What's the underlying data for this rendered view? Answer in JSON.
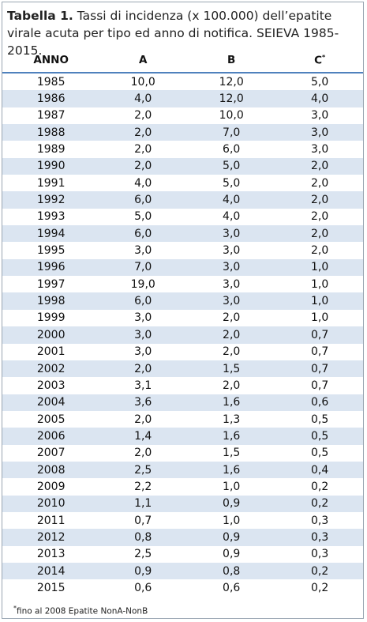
{
  "title": {
    "label": "Tabella 1.",
    "text": "Tassi di incidenza (x 100.000) dell’epatite virale acuta per tipo ed anno di notifica. SEIEVA 1985-2015."
  },
  "table": {
    "header": [
      "ANNO",
      "A",
      "B",
      "C"
    ],
    "header_mark": "*",
    "rows": [
      [
        "1985",
        "10,0",
        "12,0",
        "5,0"
      ],
      [
        "1986",
        "4,0",
        "12,0",
        "4,0"
      ],
      [
        "1987",
        "2,0",
        "10,0",
        "3,0"
      ],
      [
        "1988",
        "2,0",
        "7,0",
        "3,0"
      ],
      [
        "1989",
        "2,0",
        "6,0",
        "3,0"
      ],
      [
        "1990",
        "2,0",
        "5,0",
        "2,0"
      ],
      [
        "1991",
        "4,0",
        "5,0",
        "2,0"
      ],
      [
        "1992",
        "6,0",
        "4,0",
        "2,0"
      ],
      [
        "1993",
        "5,0",
        "4,0",
        "2,0"
      ],
      [
        "1994",
        "6,0",
        "3,0",
        "2,0"
      ],
      [
        "1995",
        "3,0",
        "3,0",
        "2,0"
      ],
      [
        "1996",
        "7,0",
        "3,0",
        "1,0"
      ],
      [
        "1997",
        "19,0",
        "3,0",
        "1,0"
      ],
      [
        "1998",
        "6,0",
        "3,0",
        "1,0"
      ],
      [
        "1999",
        "3,0",
        "2,0",
        "1,0"
      ],
      [
        "2000",
        "3,0",
        "2,0",
        "0,7"
      ],
      [
        "2001",
        "3,0",
        "2,0",
        "0,7"
      ],
      [
        "2002",
        "2,0",
        "1,5",
        "0,7"
      ],
      [
        "2003",
        "3,1",
        "2,0",
        "0,7"
      ],
      [
        "2004",
        "3,6",
        "1,6",
        "0,6"
      ],
      [
        "2005",
        "2,0",
        "1,3",
        "0,5"
      ],
      [
        "2006",
        "1,4",
        "1,6",
        "0,5"
      ],
      [
        "2007",
        "2,0",
        "1,5",
        "0,5"
      ],
      [
        "2008",
        "2,5",
        "1,6",
        "0,4"
      ],
      [
        "2009",
        "2,2",
        "1,0",
        "0,2"
      ],
      [
        "2010",
        "1,1",
        "0,9",
        "0,2"
      ],
      [
        "2011",
        "0,7",
        "1,0",
        "0,3"
      ],
      [
        "2012",
        "0,8",
        "0,9",
        "0,3"
      ],
      [
        "2013",
        "2,5",
        "0,9",
        "0,3"
      ],
      [
        "2014",
        "0,9",
        "0,8",
        "0,2"
      ],
      [
        "2015",
        "0,6",
        "0,6",
        "0,2"
      ]
    ]
  },
  "footnote": {
    "mark": "*",
    "text": "fino al 2008 Epatite NonA-NonB"
  }
}
